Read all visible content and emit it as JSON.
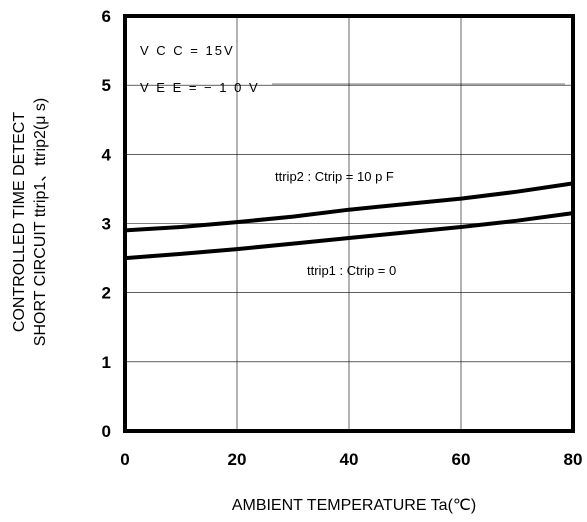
{
  "chart_data": {
    "type": "line",
    "xlabel": "AMBIENT TEMPERATURE  Ta(℃)",
    "ylabel_line1": "CONTROLLED TIME DETECT",
    "ylabel_line2": "SHORT CIRCUIT  ttrip1、ttrip2(μ s)",
    "xlim": [
      0,
      80
    ],
    "ylim": [
      0,
      6
    ],
    "xticks": [
      0,
      20,
      40,
      60,
      80
    ],
    "yticks": [
      0,
      1,
      2,
      3,
      4,
      5,
      6
    ],
    "grid": true,
    "annotations": {
      "vcc": "V C C = 15V",
      "vee": "V E E = − 1 0 V"
    },
    "series": [
      {
        "name": "ttrip2 : Ctrip = 10 p F",
        "x": [
          0,
          10,
          20,
          30,
          40,
          50,
          60,
          70,
          80
        ],
        "y": [
          2.9,
          2.95,
          3.02,
          3.1,
          3.2,
          3.28,
          3.36,
          3.46,
          3.58
        ]
      },
      {
        "name": "ttrip1 : Ctrip = 0",
        "x": [
          0,
          10,
          20,
          30,
          40,
          50,
          60,
          70,
          80
        ],
        "y": [
          2.5,
          2.56,
          2.63,
          2.71,
          2.79,
          2.87,
          2.95,
          3.04,
          3.15
        ]
      }
    ]
  }
}
